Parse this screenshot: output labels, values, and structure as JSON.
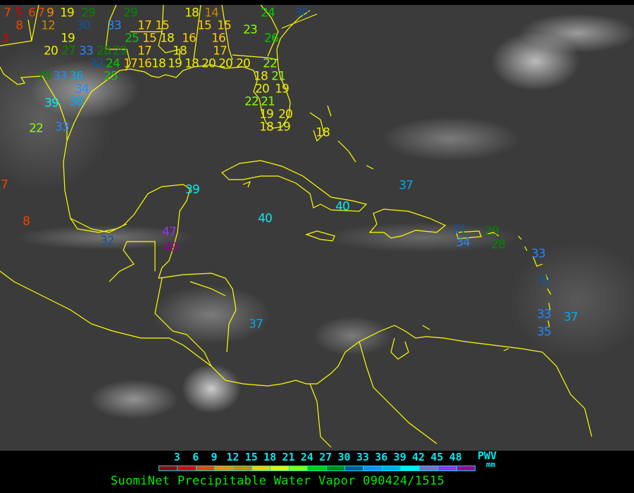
{
  "title": "SuomiNet Precipitable Water Vapor 090424/1515",
  "legend": {
    "unit_label": "PWV",
    "unit": "mm",
    "ticks": [
      "3",
      "6",
      "9",
      "12",
      "15",
      "18",
      "21",
      "24",
      "27",
      "30",
      "33",
      "36",
      "39",
      "42",
      "45",
      "48"
    ],
    "colors": [
      "#990000",
      "#dd0000",
      "#ee4400",
      "#ff8800",
      "#cc8800",
      "#ffcc00",
      "#eeee00",
      "#88ff00",
      "#00cc00",
      "#008800",
      "#115599",
      "#2288ff",
      "#00aaee",
      "#00eeee",
      "#8866cc",
      "#9933ee",
      "#990099"
    ]
  },
  "coastline_color": "#ffff00",
  "stations": [
    "7",
    "5",
    "6",
    "7",
    "9",
    "19",
    "29",
    "30",
    "33",
    "29",
    "17",
    "15",
    "8",
    "12",
    "3",
    "19",
    "20",
    "27",
    "33",
    "28",
    "29",
    "32",
    "25",
    "15",
    "18",
    "17",
    "16",
    "18",
    "16",
    "18",
    "15",
    "14",
    "15",
    "16",
    "17",
    "23",
    "24",
    "30",
    "26",
    "22",
    "24",
    "17",
    "25",
    "18",
    "19",
    "18",
    "20",
    "20",
    "20",
    "18",
    "21",
    "20",
    "21",
    "19",
    "22",
    "19",
    "20",
    "18",
    "19",
    "29",
    "33",
    "36",
    "34",
    "38",
    "39",
    "33",
    "22",
    "18",
    "7",
    "8",
    "32",
    "39",
    "47",
    "49",
    "40",
    "40",
    "37",
    "37",
    "31",
    "34",
    "29",
    "28",
    "33",
    "32",
    "33",
    "37",
    "35"
  ]
}
